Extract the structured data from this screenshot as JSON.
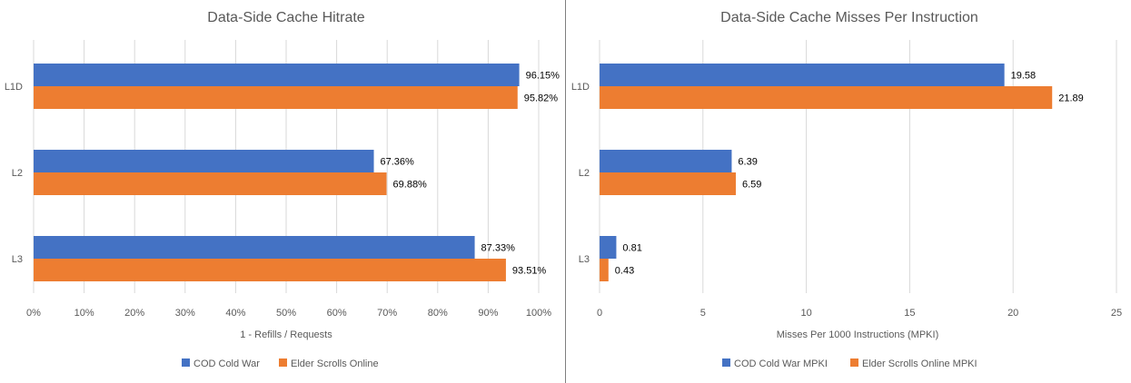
{
  "colors": {
    "blue": "#4472c4",
    "orange": "#ed7d31",
    "grid": "#d9d9d9",
    "text": "#595959",
    "label": "#000000",
    "divider": "#7f7f7f"
  },
  "chart_data": [
    {
      "type": "bar",
      "orientation": "horizontal",
      "title": "Data-Side Cache Hitrate",
      "xlabel": "1 - Refills / Requests",
      "ylabel": "",
      "xlim": [
        0,
        100
      ],
      "x_ticks": [
        "0%",
        "10%",
        "20%",
        "30%",
        "40%",
        "50%",
        "60%",
        "70%",
        "80%",
        "90%",
        "100%"
      ],
      "categories": [
        "L1D",
        "L2",
        "L3"
      ],
      "series": [
        {
          "name": "COD Cold War",
          "color": "#4472c4",
          "values": [
            96.15,
            67.36,
            87.33
          ],
          "labels": [
            "96.15%",
            "67.36%",
            "87.33%"
          ]
        },
        {
          "name": "Elder Scrolls Online",
          "color": "#ed7d31",
          "values": [
            95.82,
            69.88,
            93.51
          ],
          "labels": [
            "95.82%",
            "69.88%",
            "93.51%"
          ]
        }
      ],
      "grid": true,
      "legend": "bottom"
    },
    {
      "type": "bar",
      "orientation": "horizontal",
      "title": "Data-Side Cache Misses Per Instruction",
      "xlabel": "Misses Per 1000 Instructions (MPKI)",
      "ylabel": "",
      "xlim": [
        0,
        25
      ],
      "x_ticks": [
        "0",
        "5",
        "10",
        "15",
        "20",
        "25"
      ],
      "categories": [
        "L1D",
        "L2",
        "L3"
      ],
      "series": [
        {
          "name": "COD Cold War MPKI",
          "color": "#4472c4",
          "values": [
            19.58,
            6.39,
            0.81
          ],
          "labels": [
            "19.58",
            "6.39",
            "0.81"
          ]
        },
        {
          "name": "Elder Scrolls Online MPKI",
          "color": "#ed7d31",
          "values": [
            21.89,
            6.59,
            0.43
          ],
          "labels": [
            "21.89",
            "6.59",
            "0.43"
          ]
        }
      ],
      "grid": true,
      "legend": "bottom"
    }
  ]
}
